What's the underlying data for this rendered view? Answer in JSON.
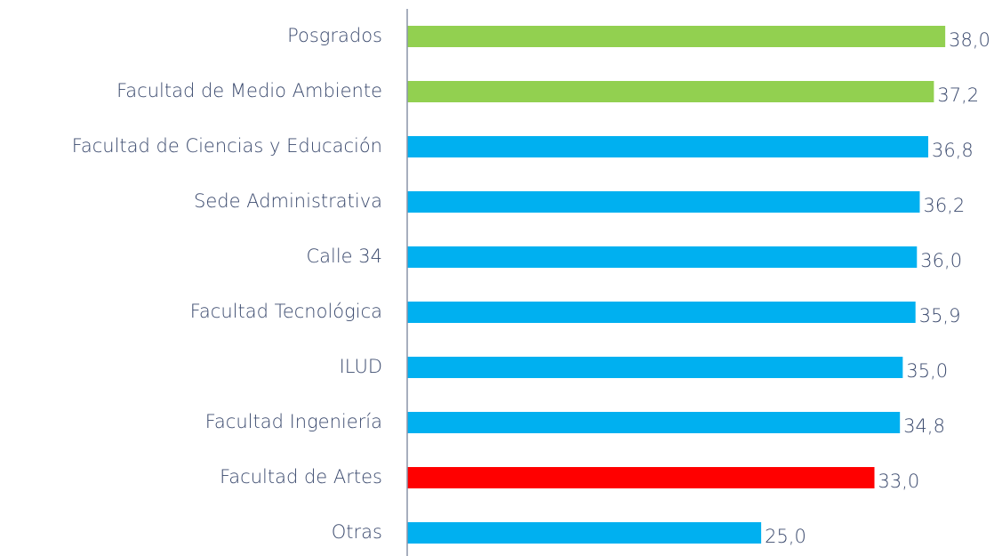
{
  "chart_data": {
    "type": "hbar",
    "categories": [
      "Posgrados",
      "Facultad de Medio Ambiente",
      "Facultad de Ciencias y Educación",
      "Sede Administrativa",
      "Calle 34",
      "Facultad Tecnológica",
      "ILUD",
      "Facultad Ingeniería",
      "Facultad de Artes",
      "Otras"
    ],
    "values": [
      38.0,
      37.2,
      36.8,
      36.2,
      36.0,
      35.9,
      35.0,
      34.8,
      33.0,
      25.0
    ],
    "value_labels": [
      "38,0",
      "37,2",
      "36,8",
      "36,2",
      "36,0",
      "35,9",
      "35,0",
      "34,8",
      "33,0",
      "25,0"
    ],
    "colors": [
      "#92d050",
      "#92d050",
      "#00b0f0",
      "#00b0f0",
      "#00b0f0",
      "#00b0f0",
      "#00b0f0",
      "#00b0f0",
      "#ff0000",
      "#00b0f0"
    ],
    "xlim": [
      0,
      40
    ]
  }
}
